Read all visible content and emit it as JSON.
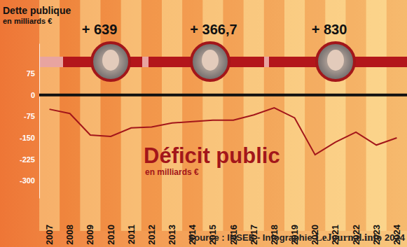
{
  "chart_data": {
    "type": "line",
    "title": "Déficit public",
    "subtitle": "en milliards €",
    "categories": [
      "2007",
      "2008",
      "2009",
      "2010",
      "2011",
      "2012",
      "2013",
      "2014",
      "2015",
      "2016",
      "2017",
      "2018",
      "2019",
      "2020",
      "2021",
      "2022",
      "2023",
      "2024"
    ],
    "values": [
      -50,
      -65,
      -140,
      -145,
      -115,
      -112,
      -98,
      -93,
      -88,
      -88,
      -70,
      -45,
      -80,
      -209,
      -165,
      -130,
      -175,
      -150
    ],
    "color": "#a3161a",
    "ylim": [
      -360,
      180
    ],
    "yticks": [
      75,
      0,
      -75,
      -150,
      -225,
      -300
    ],
    "debt_title": "Dette publique",
    "debt_subtitle": "en milliards €",
    "debt_increases": {
      "values": [
        639,
        366.7,
        830
      ],
      "value_labels": [
        "+ 639",
        "+ 366,7",
        "+ 830"
      ]
    },
    "source": [
      "Source : INSEE - Infographie",
      "LeJournal.info",
      "2024"
    ]
  }
}
